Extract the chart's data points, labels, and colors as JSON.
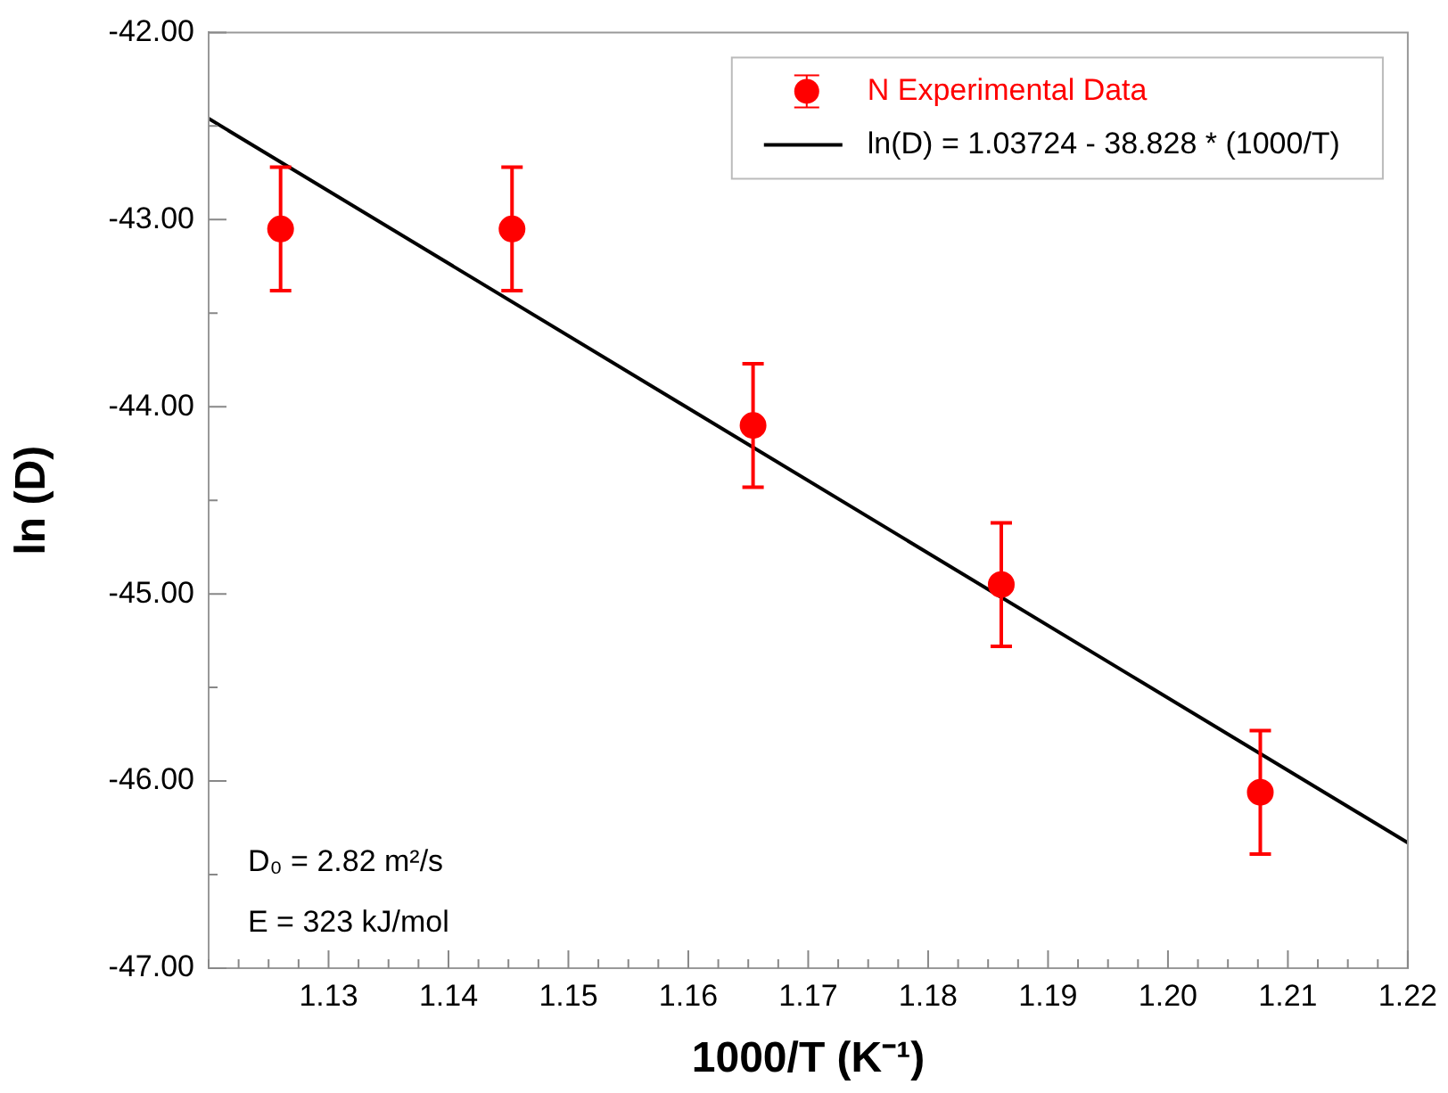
{
  "chart_data": {
    "type": "scatter",
    "xlabel": "1000/T (K⁻¹)",
    "ylabel": "ln (D)",
    "xlim": [
      1.12,
      1.22
    ],
    "ylim": [
      -47,
      -42
    ],
    "xticks": [
      {
        "value": 1.12,
        "label": null
      },
      {
        "value": 1.1225,
        "label": null
      },
      {
        "value": 1.125,
        "label": null
      },
      {
        "value": 1.1275,
        "label": null
      },
      {
        "value": 1.13,
        "label": "1.13"
      },
      {
        "value": 1.1325,
        "label": null
      },
      {
        "value": 1.135,
        "label": null
      },
      {
        "value": 1.1375,
        "label": null
      },
      {
        "value": 1.14,
        "label": "1.14"
      },
      {
        "value": 1.1425,
        "label": null
      },
      {
        "value": 1.145,
        "label": null
      },
      {
        "value": 1.1475,
        "label": null
      },
      {
        "value": 1.15,
        "label": "1.15"
      },
      {
        "value": 1.1525,
        "label": null
      },
      {
        "value": 1.155,
        "label": null
      },
      {
        "value": 1.1575,
        "label": null
      },
      {
        "value": 1.16,
        "label": "1.16"
      },
      {
        "value": 1.1625,
        "label": null
      },
      {
        "value": 1.165,
        "label": null
      },
      {
        "value": 1.1675,
        "label": null
      },
      {
        "value": 1.17,
        "label": "1.17"
      },
      {
        "value": 1.1725,
        "label": null
      },
      {
        "value": 1.175,
        "label": null
      },
      {
        "value": 1.1775,
        "label": null
      },
      {
        "value": 1.18,
        "label": "1.18"
      },
      {
        "value": 1.1825,
        "label": null
      },
      {
        "value": 1.185,
        "label": null
      },
      {
        "value": 1.1875,
        "label": null
      },
      {
        "value": 1.19,
        "label": "1.19"
      },
      {
        "value": 1.1925,
        "label": null
      },
      {
        "value": 1.195,
        "label": null
      },
      {
        "value": 1.1975,
        "label": null
      },
      {
        "value": 1.2,
        "label": "1.20"
      },
      {
        "value": 1.2025,
        "label": null
      },
      {
        "value": 1.205,
        "label": null
      },
      {
        "value": 1.2075,
        "label": null
      },
      {
        "value": 1.21,
        "label": "1.21"
      },
      {
        "value": 1.2125,
        "label": null
      },
      {
        "value": 1.215,
        "label": null
      },
      {
        "value": 1.2175,
        "label": null
      },
      {
        "value": 1.22,
        "label": "1.22"
      }
    ],
    "yticks": [
      {
        "value": -47,
        "label": "-47.00"
      },
      {
        "value": -46.5,
        "label": null
      },
      {
        "value": -46,
        "label": "-46.00"
      },
      {
        "value": -45.5,
        "label": null
      },
      {
        "value": -45,
        "label": "-45.00"
      },
      {
        "value": -44.5,
        "label": null
      },
      {
        "value": -44,
        "label": "-44.00"
      },
      {
        "value": -43.5,
        "label": null
      },
      {
        "value": -43,
        "label": "-43.00"
      },
      {
        "value": -42.5,
        "label": null
      },
      {
        "value": -42,
        "label": "-42.00"
      }
    ],
    "legend": "top right",
    "line_style": "solid",
    "series": [
      {
        "name": "N Experimental Data",
        "marker": "circle",
        "color": "#ff0000",
        "x": [
          1.126,
          1.1453,
          1.1654,
          1.1861,
          1.2077
        ],
        "values": [
          -43.05,
          -43.05,
          -44.1,
          -44.95,
          -46.06
        ],
        "errors": [
          0.33,
          0.33,
          0.33,
          0.33,
          0.33
        ]
      },
      {
        "name": "ln(D) = 1.03724 - 38.828 * (1000/T)",
        "type": "line",
        "marker": "none",
        "color": "#000000",
        "x": [
          1.12,
          1.22
        ],
        "values": [
          -42.46,
          -46.33
        ]
      }
    ],
    "annotations": [
      "D₀ = 2.82 m²/s",
      "E = 323 kJ/mol"
    ]
  }
}
